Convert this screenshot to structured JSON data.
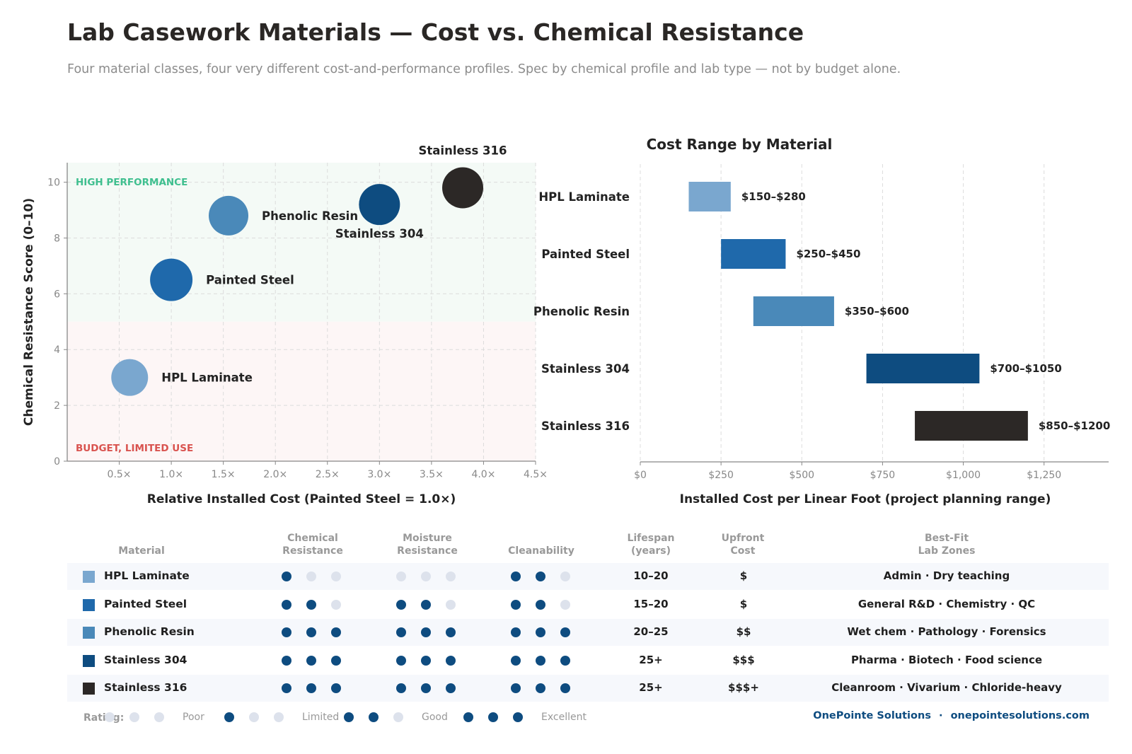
{
  "header": {
    "title": "Lab Casework Materials — Cost vs. Chemical Resistance",
    "subtitle": "Four material classes, four very different cost-and-performance profiles. Spec by chemical profile and lab type — not by budget alone."
  },
  "colors": {
    "hpl": "#7aa7cf",
    "painted_steel": "#1f69ab",
    "phenolic": "#4a89b9",
    "ss304": "#0e4c80",
    "ss316": "#2c2826",
    "high_zone_label": "#3fbf8f",
    "budget_zone_label": "#d9534f",
    "dot_filled": "#0e4c80",
    "dot_empty": "#dde2ec"
  },
  "chart_data": [
    {
      "type": "scatter",
      "xlabel": "Relative Installed Cost  (Painted Steel = 1.0×)",
      "ylabel": "Chemical Resistance Score (0–10)",
      "xlim": [
        0,
        4.5
      ],
      "ylim": [
        0,
        10.7
      ],
      "x_ticks": [
        "0.5×",
        "1.0×",
        "1.5×",
        "2.0×",
        "2.5×",
        "3.0×",
        "3.5×",
        "4.0×",
        "4.5×"
      ],
      "x_tick_values": [
        0.5,
        1.0,
        1.5,
        2.0,
        2.5,
        3.0,
        3.5,
        4.0,
        4.5
      ],
      "y_ticks": [
        0,
        2,
        4,
        6,
        8,
        10
      ],
      "grid": true,
      "zones": [
        {
          "label": "HIGH PERFORMANCE",
          "y_from": 5,
          "y_to": 10.7
        },
        {
          "label": "BUDGET, LIMITED USE",
          "y_from": 0,
          "y_to": 5
        }
      ],
      "points": [
        {
          "label": "HPL Laminate",
          "x": 0.6,
          "y": 3.0,
          "color_key": "hpl",
          "label_pos": "right"
        },
        {
          "label": "Painted Steel",
          "x": 1.0,
          "y": 6.5,
          "color_key": "painted_steel",
          "label_pos": "right"
        },
        {
          "label": "Phenolic Resin",
          "x": 1.55,
          "y": 8.8,
          "color_key": "phenolic",
          "label_pos": "right"
        },
        {
          "label": "Stainless 304",
          "x": 3.0,
          "y": 9.2,
          "color_key": "ss304",
          "label_pos": "below"
        },
        {
          "label": "Stainless 316",
          "x": 3.8,
          "y": 9.8,
          "color_key": "ss316",
          "label_pos": "above"
        }
      ]
    },
    {
      "type": "bar",
      "orientation": "horizontal-range",
      "title": "Cost Range by Material",
      "xlabel": "Installed Cost per Linear Foot  (project planning range)",
      "xlim": [
        0,
        1450
      ],
      "x_ticks": [
        "$0",
        "$250",
        "$500",
        "$750",
        "$1,000",
        "$1,250"
      ],
      "x_tick_values": [
        0,
        250,
        500,
        750,
        1000,
        1250
      ],
      "grid": true,
      "bars": [
        {
          "category": "HPL Laminate",
          "low": 150,
          "high": 280,
          "label": "$150–$280",
          "color_key": "hpl"
        },
        {
          "category": "Painted Steel",
          "low": 250,
          "high": 450,
          "label": "$250–$450",
          "color_key": "painted_steel"
        },
        {
          "category": "Phenolic Resin",
          "low": 350,
          "high": 600,
          "label": "$350–$600",
          "color_key": "phenolic"
        },
        {
          "category": "Stainless 304",
          "low": 700,
          "high": 1050,
          "label": "$700–$1050",
          "color_key": "ss304"
        },
        {
          "category": "Stainless 316",
          "low": 850,
          "high": 1200,
          "label": "$850–$1200",
          "color_key": "ss316"
        }
      ]
    }
  ],
  "table": {
    "headers": {
      "material": "Material",
      "chem_1": "Chemical",
      "chem_2": "Resistance",
      "moist_1": "Moisture",
      "moist_2": "Resistance",
      "clean": "Cleanability",
      "life_1": "Lifespan",
      "life_2": "(years)",
      "cost_1": "Upfront",
      "cost_2": "Cost",
      "zones_1": "Best-Fit",
      "zones_2": "Lab Zones"
    },
    "rows": [
      {
        "material": "HPL Laminate",
        "color_key": "hpl",
        "chem": 1,
        "moist": 0,
        "clean": 2,
        "lifespan": "10–20",
        "cost": "$",
        "zones": "Admin · Dry teaching"
      },
      {
        "material": "Painted Steel",
        "color_key": "painted_steel",
        "chem": 2,
        "moist": 2,
        "clean": 2,
        "lifespan": "15–20",
        "cost": "$",
        "zones": "General R&D · Chemistry · QC"
      },
      {
        "material": "Phenolic Resin",
        "color_key": "phenolic",
        "chem": 3,
        "moist": 3,
        "clean": 3,
        "lifespan": "20–25",
        "cost": "$$",
        "zones": "Wet chem · Pathology · Forensics"
      },
      {
        "material": "Stainless 304",
        "color_key": "ss304",
        "chem": 3,
        "moist": 3,
        "clean": 3,
        "lifespan": "25+",
        "cost": "$$$",
        "zones": "Pharma · Biotech · Food science"
      },
      {
        "material": "Stainless 316",
        "color_key": "ss316",
        "chem": 3,
        "moist": 3,
        "clean": 3,
        "lifespan": "25+",
        "cost": "$$$+",
        "zones": "Cleanroom · Vivarium · Chloride-heavy"
      }
    ]
  },
  "legend": {
    "title": "Rating:",
    "levels": [
      {
        "label": "Poor",
        "filled": 0
      },
      {
        "label": "Limited",
        "filled": 1
      },
      {
        "label": "Good",
        "filled": 2
      },
      {
        "label": "Excellent",
        "filled": 3
      }
    ]
  },
  "footer": {
    "brand": "OnePointe Solutions",
    "separator": "·",
    "site": "onepointesolutions.com"
  }
}
